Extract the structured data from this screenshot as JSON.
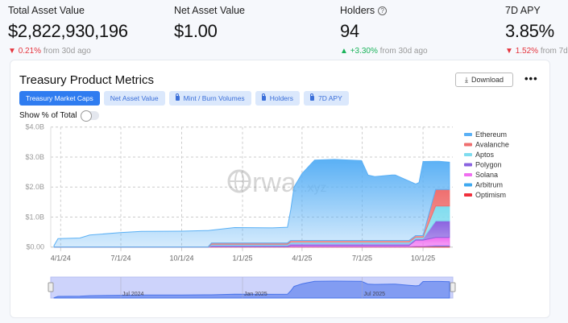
{
  "stats": [
    {
      "label": "Total Asset Value",
      "value": "$2,822,930,196",
      "change": "0.21%",
      "direction": "down",
      "suffix": "from 30d ago"
    },
    {
      "label": "Net Asset Value",
      "value": "$1.00"
    },
    {
      "label": "Holders",
      "value": "94",
      "change": "+3.30%",
      "direction": "up",
      "suffix": "from 30d ago",
      "help_icon": "question-circle-icon"
    },
    {
      "label": "7D APY",
      "value": "3.85%",
      "change": "1.52%",
      "direction": "down",
      "suffix": "from 7d"
    }
  ],
  "card": {
    "title": "Treasury Product Metrics",
    "download_label": "Download",
    "more_label": "•••",
    "tabs": [
      {
        "label": "Treasury Market Caps",
        "active": true,
        "locked": false
      },
      {
        "label": "Net Asset Value",
        "locked": false
      },
      {
        "label": "Mint / Burn Volumes",
        "locked": true
      },
      {
        "label": "Holders",
        "locked": true
      },
      {
        "label": "7D APY",
        "locked": true
      }
    ],
    "toggle_label": "Show % of Total",
    "toggle_on": false,
    "watermark": "rwa.xyz"
  },
  "chart_data": {
    "type": "area",
    "stacked": true,
    "grid": true,
    "legend_position": "right",
    "ylim": [
      0,
      4000000000
    ],
    "y_ticks": [
      "$0.00",
      "$1.0B",
      "$2.0B",
      "$3.0B",
      "$4.0B"
    ],
    "x_ticks": [
      "4/1/24",
      "7/1/24",
      "10/1/24",
      "1/1/25",
      "4/1/25",
      "7/1/25",
      "10/1/25"
    ],
    "x_tick_dates": [
      "2024-04-01",
      "2024-07-01",
      "2024-10-01",
      "2025-01-01",
      "2025-04-01",
      "2025-07-01",
      "2025-10-01"
    ],
    "navigator_labels": [
      "Jul 2024",
      "Jan 2025",
      "Jul 2025"
    ],
    "navigator_label_dates": [
      "2024-07-01",
      "2025-01-01",
      "2025-07-01"
    ],
    "x": [
      "2024-03-22",
      "2024-03-28",
      "2024-04-30",
      "2024-05-15",
      "2024-06-30",
      "2024-08-01",
      "2024-10-01",
      "2024-11-10",
      "2024-11-15",
      "2024-12-20",
      "2025-02-15",
      "2025-03-10",
      "2025-03-15",
      "2025-03-20",
      "2025-04-01",
      "2025-04-20",
      "2025-05-20",
      "2025-06-30",
      "2025-07-10",
      "2025-07-20",
      "2025-08-15",
      "2025-08-20",
      "2025-09-10",
      "2025-09-20",
      "2025-09-25",
      "2025-10-01",
      "2025-10-20",
      "2025-10-25",
      "2025-11-10"
    ],
    "series": [
      {
        "name": "Ethereum",
        "color": "#5ab0f5",
        "values": [
          0.05,
          0.28,
          0.3,
          0.4,
          0.48,
          0.52,
          0.53,
          0.55,
          0.425,
          0.515,
          0.505,
          0.525,
          1.03,
          1.78,
          2.23,
          2.68,
          2.7,
          2.66,
          2.18,
          2.13,
          2.18,
          2.18,
          1.98,
          1.72,
          1.77,
          2.47,
          0.94,
          0.94,
          0.91
        ]
      },
      {
        "name": "Avalanche",
        "color": "#ef6f6f",
        "values": [
          0,
          0,
          0,
          0,
          0,
          0,
          0,
          0,
          0.04,
          0.04,
          0.04,
          0.04,
          0.05,
          0.05,
          0.05,
          0.05,
          0.05,
          0.05,
          0.05,
          0.05,
          0.05,
          0.05,
          0.05,
          0.05,
          0.05,
          0.05,
          0.55,
          0.55,
          0.55
        ]
      },
      {
        "name": "Aptos",
        "color": "#7fdcef",
        "values": [
          0,
          0,
          0,
          0,
          0,
          0,
          0,
          0,
          0.04,
          0.04,
          0.04,
          0.04,
          0.05,
          0.05,
          0.05,
          0.05,
          0.05,
          0.05,
          0.05,
          0.05,
          0.05,
          0.05,
          0.05,
          0.05,
          0.05,
          0.05,
          0.5,
          0.5,
          0.5
        ]
      },
      {
        "name": "Polygon",
        "color": "#8a63e0",
        "values": [
          0,
          0,
          0,
          0,
          0,
          0,
          0,
          0,
          0.04,
          0.04,
          0.04,
          0.04,
          0.07,
          0.07,
          0.07,
          0.07,
          0.07,
          0.07,
          0.07,
          0.07,
          0.07,
          0.07,
          0.07,
          0.05,
          0.05,
          0.05,
          0.55,
          0.55,
          0.55
        ]
      },
      {
        "name": "Solana",
        "color": "#f06ef0",
        "values": [
          0,
          0,
          0,
          0,
          0,
          0,
          0,
          0,
          0.005,
          0.005,
          0.005,
          0.005,
          0.03,
          0.03,
          0.03,
          0.03,
          0.03,
          0.03,
          0.03,
          0.03,
          0.03,
          0.03,
          0.03,
          0.2,
          0.2,
          0.2,
          0.27,
          0.27,
          0.27
        ]
      },
      {
        "name": "Arbitrum",
        "color": "#3fa9f0",
        "values": [
          0,
          0,
          0,
          0,
          0,
          0,
          0,
          0,
          0,
          0,
          0,
          0,
          0.01,
          0.01,
          0.01,
          0.01,
          0.01,
          0.01,
          0.01,
          0.01,
          0.01,
          0.01,
          0.01,
          0.01,
          0.01,
          0.01,
          0.02,
          0.02,
          0.02
        ]
      },
      {
        "name": "Optimism",
        "color": "#f0303c",
        "values": [
          0,
          0,
          0,
          0,
          0,
          0,
          0,
          0,
          0.01,
          0.01,
          0.01,
          0.01,
          0.01,
          0.01,
          0.01,
          0.01,
          0.01,
          0.01,
          0.01,
          0.01,
          0.01,
          0.01,
          0.01,
          0.02,
          0.02,
          0.02,
          0.03,
          0.03,
          0.03
        ]
      }
    ],
    "value_unit": "billions USD"
  }
}
